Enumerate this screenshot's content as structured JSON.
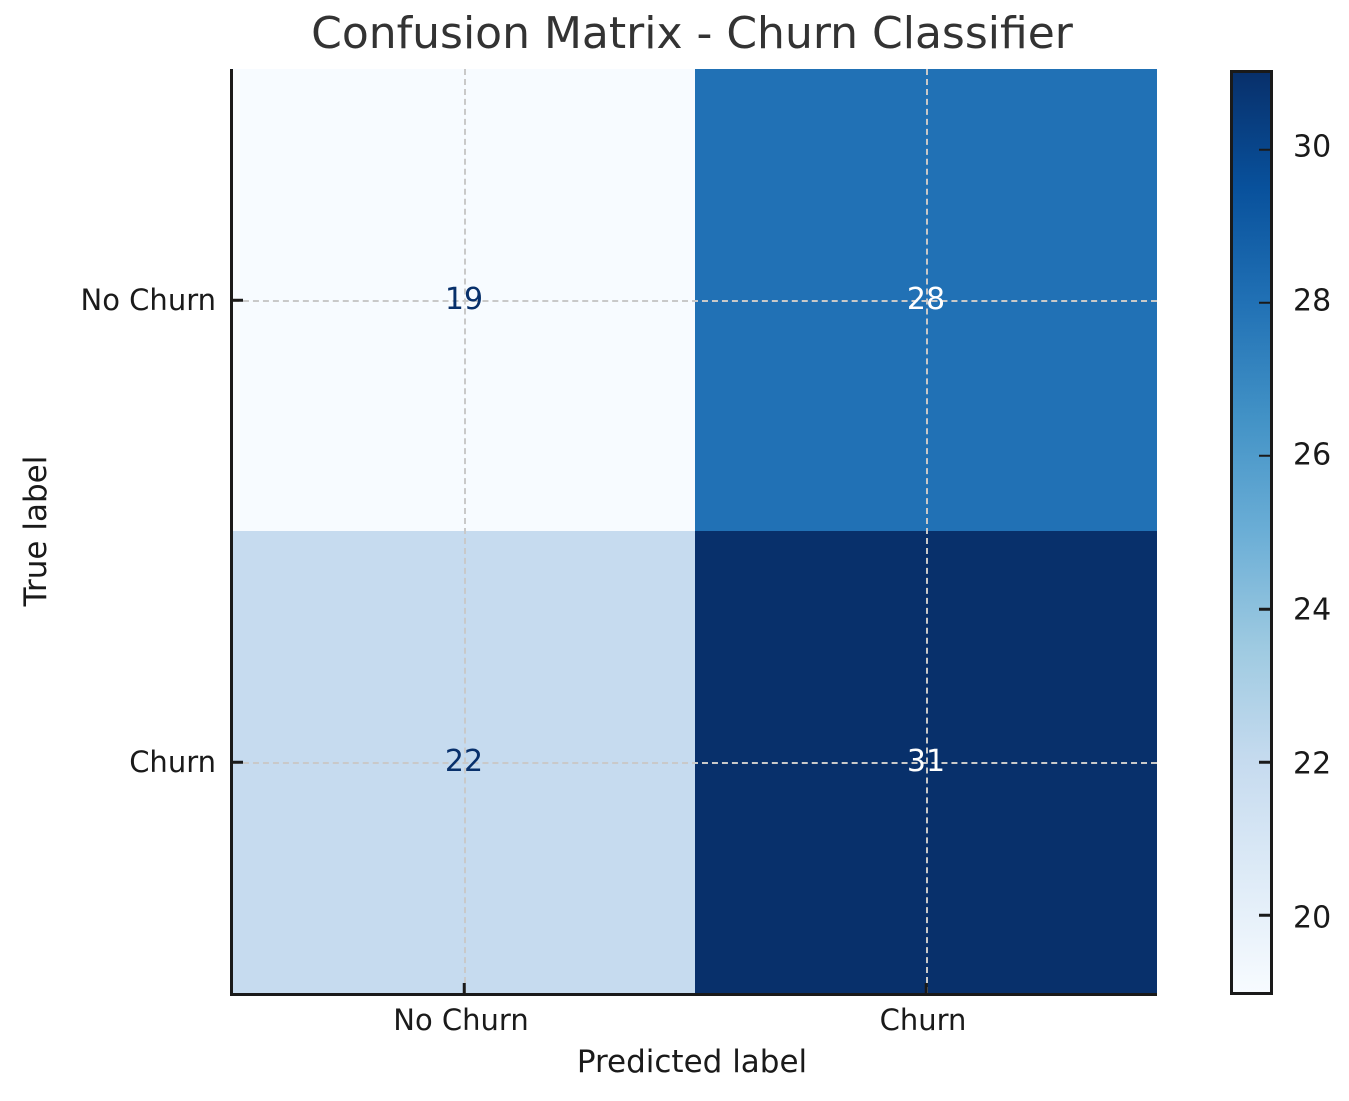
{
  "figure": {
    "title": "Confusion Matrix - Churn Classifier",
    "background": "#ffffff",
    "title_color": "#333333"
  },
  "chart_data": {
    "type": "heatmap",
    "title": "Confusion Matrix - Churn Classifier",
    "xlabel": "Predicted label",
    "ylabel": "True label",
    "x_categories": [
      "No Churn",
      "Churn"
    ],
    "y_categories": [
      "No Churn",
      "Churn"
    ],
    "matrix": [
      [
        19,
        28
      ],
      [
        22,
        31
      ]
    ],
    "vmin": 19,
    "vmax": 31,
    "colormap": "Blues",
    "colormap_stops": [
      "#f7fbff",
      "#deebf7",
      "#c6dbef",
      "#9ecae1",
      "#6baed6",
      "#4292c6",
      "#2171b5",
      "#08519c",
      "#08306b"
    ],
    "colorbar_ticks": [
      20,
      22,
      24,
      26,
      28,
      30
    ],
    "grid": true,
    "grid_style": "dashed",
    "legend_position": "right-colorbar"
  },
  "axes": {
    "xlabel": "Predicted label",
    "ylabel": "True label",
    "x_tick_labels": [
      "No Churn",
      "Churn"
    ],
    "y_tick_labels": [
      "No Churn",
      "Churn"
    ]
  },
  "cells": [
    {
      "row": "No Churn",
      "col": "No Churn",
      "value": "19",
      "bg": "#f7fbff",
      "fg": "#08306b"
    },
    {
      "row": "No Churn",
      "col": "Churn",
      "value": "28",
      "bg": "#2171b5",
      "fg": "#ffffff"
    },
    {
      "row": "Churn",
      "col": "No Churn",
      "value": "22",
      "bg": "#c6dbef",
      "fg": "#08306b"
    },
    {
      "row": "Churn",
      "col": "Churn",
      "value": "31",
      "bg": "#08306b",
      "fg": "#ffffff"
    }
  ],
  "colors": {
    "spine": "#1a1a1a",
    "grid": "#c9c9c9",
    "tick_label": "#1a1a1a"
  }
}
